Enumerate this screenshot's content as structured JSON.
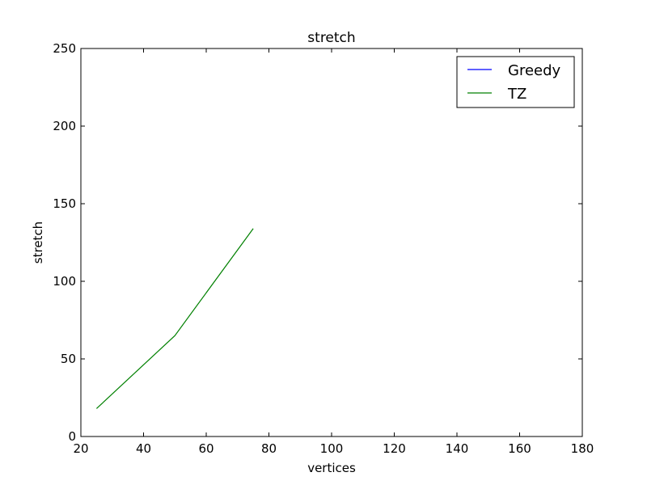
{
  "chart_data": {
    "type": "line",
    "title": "stretch",
    "xlabel": "vertices",
    "ylabel": "stretch",
    "xlim": [
      20,
      180
    ],
    "ylim": [
      0,
      250
    ],
    "xticks": [
      20,
      40,
      60,
      80,
      100,
      120,
      140,
      160,
      180
    ],
    "yticks": [
      0,
      50,
      100,
      150,
      200,
      250
    ],
    "grid": false,
    "legend_position": "top-right",
    "series": [
      {
        "name": "Greedy",
        "color": "#0000ff",
        "x": [],
        "y": []
      },
      {
        "name": "TZ",
        "color": "#008000",
        "x": [
          25,
          50,
          75
        ],
        "y": [
          18,
          65,
          134
        ]
      }
    ]
  }
}
